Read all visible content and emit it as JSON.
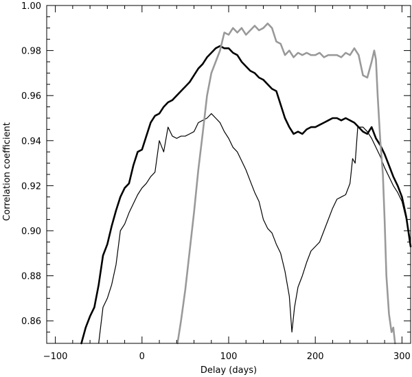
{
  "chart_data": {
    "type": "line",
    "title": "",
    "xlabel": "Delay (days)",
    "ylabel": "Correlation coefficient",
    "xlim": [
      -110,
      310
    ],
    "ylim": [
      0.85,
      1.0
    ],
    "x_ticks": [
      -100,
      0,
      100,
      200,
      300
    ],
    "y_ticks": [
      0.86,
      0.88,
      0.9,
      0.92,
      0.94,
      0.96,
      0.98,
      1.0
    ],
    "x_tick_labels": [
      "−100",
      "0",
      "100",
      "200",
      "300"
    ],
    "y_tick_labels": [
      "0.86",
      "0.88",
      "0.90",
      "0.92",
      "0.94",
      "0.96",
      "0.98",
      "1.00"
    ],
    "grid": false,
    "legend": "none",
    "series": [
      {
        "color": "#000000",
        "width": 2.6,
        "points": [
          [
            -70,
            0.85
          ],
          [
            -65,
            0.857
          ],
          [
            -60,
            0.862
          ],
          [
            -55,
            0.866
          ],
          [
            -50,
            0.876
          ],
          [
            -45,
            0.889
          ],
          [
            -40,
            0.894
          ],
          [
            -35,
            0.902
          ],
          [
            -30,
            0.909
          ],
          [
            -25,
            0.915
          ],
          [
            -20,
            0.919
          ],
          [
            -15,
            0.921
          ],
          [
            -10,
            0.929
          ],
          [
            -5,
            0.935
          ],
          [
            0,
            0.936
          ],
          [
            5,
            0.942
          ],
          [
            10,
            0.948
          ],
          [
            15,
            0.951
          ],
          [
            20,
            0.952
          ],
          [
            25,
            0.955
          ],
          [
            30,
            0.957
          ],
          [
            35,
            0.958
          ],
          [
            40,
            0.96
          ],
          [
            45,
            0.962
          ],
          [
            50,
            0.964
          ],
          [
            55,
            0.966
          ],
          [
            60,
            0.969
          ],
          [
            65,
            0.972
          ],
          [
            70,
            0.974
          ],
          [
            75,
            0.977
          ],
          [
            80,
            0.979
          ],
          [
            85,
            0.981
          ],
          [
            90,
            0.982
          ],
          [
            95,
            0.981
          ],
          [
            100,
            0.981
          ],
          [
            105,
            0.979
          ],
          [
            110,
            0.978
          ],
          [
            115,
            0.975
          ],
          [
            120,
            0.973
          ],
          [
            125,
            0.971
          ],
          [
            130,
            0.97
          ],
          [
            135,
            0.968
          ],
          [
            140,
            0.967
          ],
          [
            145,
            0.965
          ],
          [
            150,
            0.963
          ],
          [
            155,
            0.962
          ],
          [
            160,
            0.956
          ],
          [
            165,
            0.95
          ],
          [
            170,
            0.946
          ],
          [
            175,
            0.943
          ],
          [
            180,
            0.944
          ],
          [
            185,
            0.943
          ],
          [
            190,
            0.945
          ],
          [
            195,
            0.946
          ],
          [
            200,
            0.946
          ],
          [
            205,
            0.947
          ],
          [
            210,
            0.948
          ],
          [
            215,
            0.949
          ],
          [
            220,
            0.95
          ],
          [
            225,
            0.95
          ],
          [
            230,
            0.949
          ],
          [
            235,
            0.95
          ],
          [
            240,
            0.949
          ],
          [
            245,
            0.948
          ],
          [
            250,
            0.946
          ],
          [
            255,
            0.944
          ],
          [
            260,
            0.943
          ],
          [
            265,
            0.946
          ],
          [
            270,
            0.941
          ],
          [
            275,
            0.938
          ],
          [
            280,
            0.934
          ],
          [
            285,
            0.929
          ],
          [
            290,
            0.924
          ],
          [
            295,
            0.92
          ],
          [
            300,
            0.915
          ],
          [
            305,
            0.906
          ],
          [
            310,
            0.893
          ]
        ]
      },
      {
        "color": "#000000",
        "width": 1.2,
        "points": [
          [
            -50,
            0.85
          ],
          [
            -45,
            0.866
          ],
          [
            -40,
            0.87
          ],
          [
            -35,
            0.876
          ],
          [
            -30,
            0.885
          ],
          [
            -25,
            0.9
          ],
          [
            -20,
            0.903
          ],
          [
            -15,
            0.908
          ],
          [
            -10,
            0.912
          ],
          [
            -5,
            0.916
          ],
          [
            0,
            0.919
          ],
          [
            5,
            0.921
          ],
          [
            10,
            0.924
          ],
          [
            15,
            0.926
          ],
          [
            20,
            0.94
          ],
          [
            25,
            0.935
          ],
          [
            30,
            0.946
          ],
          [
            35,
            0.942
          ],
          [
            40,
            0.941
          ],
          [
            45,
            0.942
          ],
          [
            50,
            0.942
          ],
          [
            55,
            0.943
          ],
          [
            60,
            0.944
          ],
          [
            65,
            0.948
          ],
          [
            70,
            0.949
          ],
          [
            75,
            0.95
          ],
          [
            80,
            0.952
          ],
          [
            85,
            0.95
          ],
          [
            90,
            0.948
          ],
          [
            95,
            0.944
          ],
          [
            100,
            0.941
          ],
          [
            105,
            0.937
          ],
          [
            110,
            0.935
          ],
          [
            115,
            0.931
          ],
          [
            120,
            0.927
          ],
          [
            125,
            0.922
          ],
          [
            130,
            0.917
          ],
          [
            135,
            0.913
          ],
          [
            140,
            0.905
          ],
          [
            145,
            0.901
          ],
          [
            150,
            0.899
          ],
          [
            155,
            0.894
          ],
          [
            160,
            0.89
          ],
          [
            165,
            0.882
          ],
          [
            170,
            0.871
          ],
          [
            173,
            0.855
          ],
          [
            176,
            0.866
          ],
          [
            180,
            0.875
          ],
          [
            185,
            0.88
          ],
          [
            190,
            0.886
          ],
          [
            195,
            0.891
          ],
          [
            200,
            0.893
          ],
          [
            205,
            0.895
          ],
          [
            210,
            0.9
          ],
          [
            215,
            0.905
          ],
          [
            220,
            0.91
          ],
          [
            225,
            0.914
          ],
          [
            230,
            0.915
          ],
          [
            235,
            0.916
          ],
          [
            240,
            0.921
          ],
          [
            243,
            0.932
          ],
          [
            246,
            0.93
          ],
          [
            249,
            0.946
          ],
          [
            255,
            0.946
          ],
          [
            260,
            0.944
          ],
          [
            265,
            0.941
          ],
          [
            270,
            0.937
          ],
          [
            275,
            0.933
          ],
          [
            280,
            0.928
          ],
          [
            285,
            0.924
          ],
          [
            290,
            0.92
          ],
          [
            295,
            0.917
          ],
          [
            300,
            0.913
          ],
          [
            305,
            0.905
          ],
          [
            310,
            0.895
          ]
        ]
      },
      {
        "color": "#999999",
        "width": 2.6,
        "points": [
          [
            41,
            0.85
          ],
          [
            45,
            0.86
          ],
          [
            50,
            0.874
          ],
          [
            55,
            0.891
          ],
          [
            60,
            0.908
          ],
          [
            65,
            0.927
          ],
          [
            70,
            0.943
          ],
          [
            75,
            0.96
          ],
          [
            80,
            0.97
          ],
          [
            85,
            0.975
          ],
          [
            90,
            0.98
          ],
          [
            95,
            0.988
          ],
          [
            100,
            0.987
          ],
          [
            105,
            0.99
          ],
          [
            110,
            0.988
          ],
          [
            115,
            0.99
          ],
          [
            120,
            0.987
          ],
          [
            125,
            0.989
          ],
          [
            130,
            0.991
          ],
          [
            135,
            0.989
          ],
          [
            140,
            0.99
          ],
          [
            145,
            0.992
          ],
          [
            150,
            0.99
          ],
          [
            155,
            0.984
          ],
          [
            160,
            0.983
          ],
          [
            165,
            0.978
          ],
          [
            170,
            0.98
          ],
          [
            175,
            0.977
          ],
          [
            180,
            0.979
          ],
          [
            185,
            0.978
          ],
          [
            190,
            0.979
          ],
          [
            195,
            0.978
          ],
          [
            200,
            0.978
          ],
          [
            205,
            0.979
          ],
          [
            210,
            0.977
          ],
          [
            215,
            0.978
          ],
          [
            220,
            0.978
          ],
          [
            225,
            0.978
          ],
          [
            230,
            0.977
          ],
          [
            235,
            0.979
          ],
          [
            240,
            0.978
          ],
          [
            245,
            0.981
          ],
          [
            250,
            0.978
          ],
          [
            255,
            0.969
          ],
          [
            260,
            0.968
          ],
          [
            265,
            0.975
          ],
          [
            268,
            0.98
          ],
          [
            270,
            0.976
          ],
          [
            272,
            0.96
          ],
          [
            275,
            0.94
          ],
          [
            278,
            0.925
          ],
          [
            280,
            0.905
          ],
          [
            282,
            0.88
          ],
          [
            285,
            0.863
          ],
          [
            288,
            0.855
          ],
          [
            290,
            0.857
          ],
          [
            292,
            0.85
          ]
        ]
      }
    ]
  }
}
